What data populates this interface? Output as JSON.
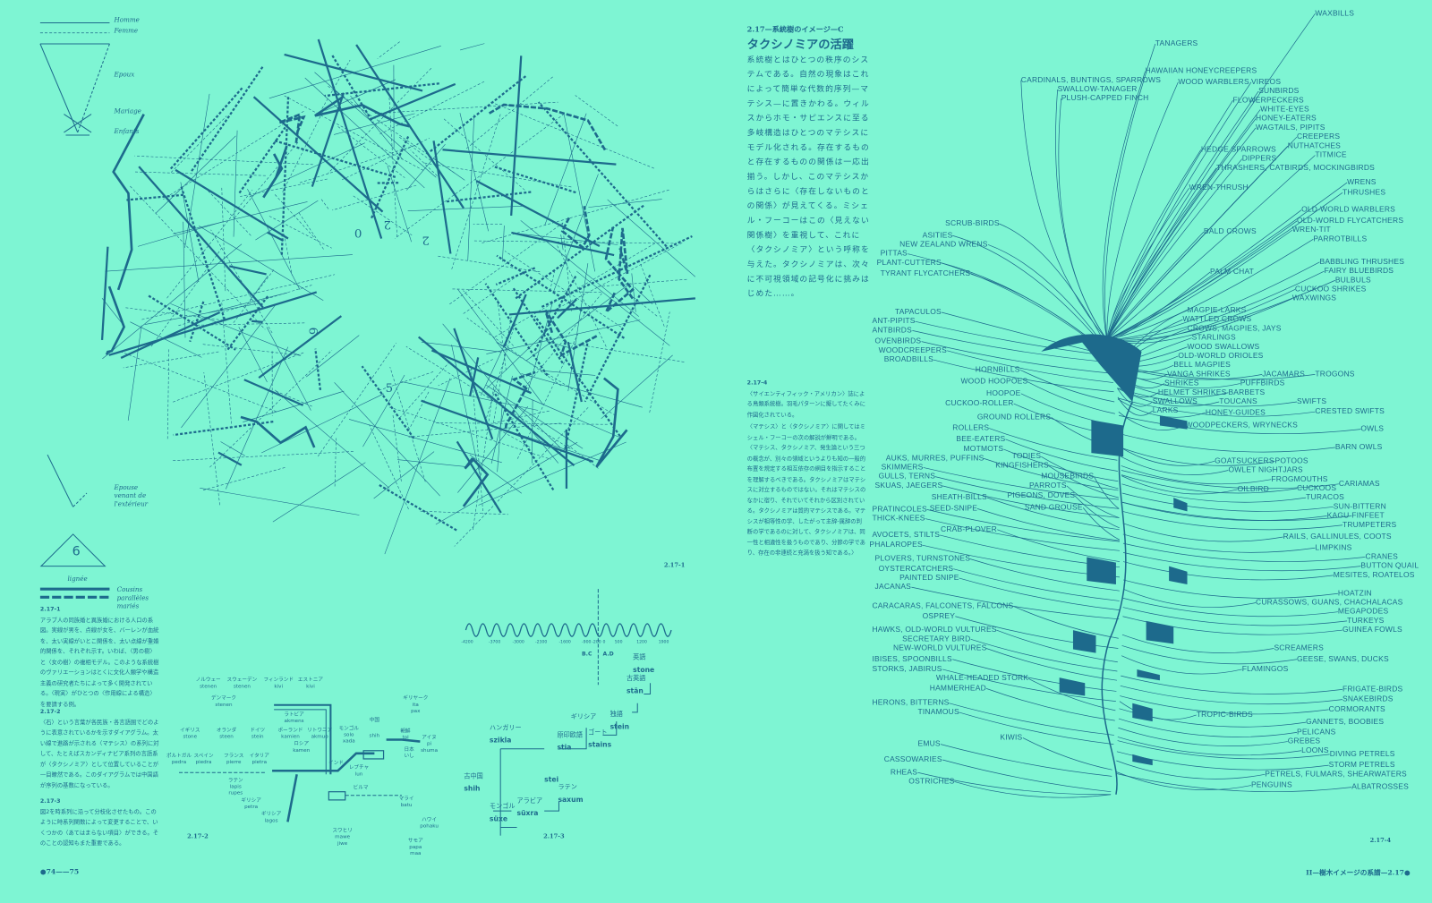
{
  "colors": {
    "background": "#7ef5d3",
    "ink": "#1d6a8c"
  },
  "legend": {
    "homme": "Homme",
    "femme": "Femme",
    "epoux": "Epoux",
    "mariage": "Mariage",
    "enfants": "Enfants",
    "epouse": "Epouse venant de l'extérieur",
    "lignee_number": "6",
    "lignee": "lignée",
    "cousins": "Cousins parallèles mariés"
  },
  "network": {
    "numbers": [
      "0",
      "2",
      "2",
      "9",
      "5",
      "6"
    ],
    "figure_label": "2.17-1"
  },
  "captions": [
    {
      "id": "2.17-1",
      "text": "アラブ人の同族婚と異族婚における人口の系図。実線が男を、点線が女を、バーレンが血統を、太い実線がいとこ関係を、太い点線が重婚的関係を、それぞれ示す。いわば、〈男の樹〉と〈女の樹〉の複相モデル。このような系統樹のヴァリエーションはとくに文化人類学や構造主義の研究者たちによって多く開発されている。〈現実〉がひとつの〈作用線による構造〉を要請する例。"
    },
    {
      "id": "2.17-2",
      "text": "〈石〉という言葉が各民族・各言語圏でどのように表意されているかを示すダイアグラム。太い線で進路が示される〈マテシス〉の系列に対して、たとえばスカンディナビア系列の言語系が〈タクシノミア〉として位置していることが一目瞭然である。このダイアグラムでは中国語が序列の基数になっている。"
    },
    {
      "id": "2.17-3",
      "text": "図2を時系列に沿って分枝化させたもの。このように時系列関数によって変更することで、いくつかの〈あてはまらない項目〉ができる。そのことの認知もまた重要である。"
    }
  ],
  "article": {
    "kicker": "2.17—系統樹のイメージ—C",
    "title": "タクシノミアの活躍",
    "body": "系統樹とはひとつの秩序のシステムである。自然の現象はこれによって簡単な代数的序列—マテシス—に置きかわる。ウィルスからホモ・サピエンスに至る多岐構造はひとつのマテシスにモデル化される。存在するものと存在するものの関係は一応出揃う。しかし、このマテシスからはさらに〈存在しないものとの関係〉が見えてくる。ミシェル・フーコーはこの〈見えない関係樹〉を重視して、これに〈タクシノミア〉という呼称を与えた。タクシノミアは、次々に不可視領域の記号化に挑みはじめた……。",
    "caption4_id": "2.17-4",
    "caption4": "〈サイエンティフィック・アメリカン〉誌による鳥類系統樹。羽毛パターンに擬してたくみに作図化されている。",
    "quote": "〈マテシス〉と〈タクシノミア〉に関してはミシェル・フーコーの次の解説が鮮明である。〈マテシス、タクシノミア、発生論という三つの概念が、別々の領域というよりも知の一般的布置を規定する相互依存の網目を指示することを理解するべきである。タクシノミアはマテシスに対立するものではない。それはマテシスのなかに宿り、それでいてそれから区別されている。タクシノミアは質的マテシスである。マテシスが相等性の学、したがって主辞-属辞の判断の学であるのに対して、タクシノミアは、同一性と相違性を扱うものであり、分節の学であり、存在の非連続と充満を扱う知である。〉"
  },
  "lang_diagram": {
    "figure_label": "2.17-2",
    "nodes": [
      "ノルウェー\nstenen",
      "スウェーデン\nstenen",
      "フィンランド\nkivi",
      "エストニア\nkivi",
      "デンマーク\nstenen",
      "ラトビア\nakmens",
      "イギリス\nstone",
      "オランダ\nsteen",
      "ドイツ\nstein",
      "ポーランド\nkamien",
      "リトワニア\nakmuo",
      "ロシア\nkamen",
      "ポルトガル\npedra",
      "スペイン\npiedra",
      "フランス\npierre",
      "イタリア\npietra",
      "ラテン\nlapis\nrupes",
      "ギリシア\npetra",
      "ギリシア\nlagos",
      "モンゴル\nsolo\nxada",
      "中国",
      "shih",
      "朝鮮\ntol",
      "アイヌ\npi\nshuma",
      "日本\nいし",
      "レプチャ\nlun",
      "インド",
      "ビルマ",
      "マライ\nbatu",
      "ハワイ\npohaku",
      "ギリヤーク\nita\npax",
      "スワヒリ\nmawe\njiwe",
      "サモア\npapa\nmaa"
    ]
  },
  "timeline": {
    "figure_label": "2.17-3",
    "ticks": [
      "-4200",
      "-3700",
      "-3000",
      "-2300",
      "-1600",
      "-900",
      "-200",
      "0",
      "500",
      "1200",
      "1900"
    ],
    "bc": "B.C",
    "ad": "A.D",
    "nodes": [
      {
        "lang": "ハンガリー",
        "word": "szikla"
      },
      {
        "lang": "古中国",
        "word": "shih"
      },
      {
        "lang": "モンゴル",
        "word": "süxe"
      },
      {
        "lang": "アラビア",
        "word": "süxra"
      },
      {
        "lang": "ラテン",
        "word": "saxum"
      },
      {
        "lang": "",
        "word": "stei"
      },
      {
        "lang": "原印欧語",
        "word": "stia"
      },
      {
        "lang": "ギリシア",
        "word": ""
      },
      {
        "lang": "ゴート",
        "word": "stains"
      },
      {
        "lang": "独語",
        "word": "stein"
      },
      {
        "lang": "古英語",
        "word": "stān"
      },
      {
        "lang": "英語",
        "word": "stone"
      }
    ]
  },
  "birds": {
    "figure_label": "2.17-4",
    "labels": [
      "WAXBILLS",
      "CARDINALS, BUNTINGS, SPARROWS",
      "TANAGERS",
      "SWALLOW-TANAGER",
      "PLUSH-CAPPED FINCH",
      "HAWAIIAN HONEYCREEPERS",
      "WOOD WARBLERS",
      "VIREOS",
      "SUNBIRDS",
      "FLOWERPECKERS",
      "WHITE-EYES",
      "HONEY-EATERS",
      "WAGTAILS, PIPITS",
      "CREEPERS",
      "NUTHATCHES",
      "TITMICE",
      "HEDGE SPARROWS",
      "DIPPERS",
      "THRASHERS, CATBIRDS, MOCKINGBIRDS",
      "WRENS",
      "THRUSHES",
      "WREN-THRUSH",
      "OLD-WORLD WARBLERS",
      "OLD-WORLD FLYCATCHERS",
      "WREN-TIT",
      "PARROTBILLS",
      "BALD CROWS",
      "BABBLING THRUSHES",
      "FAIRY BLUEBIRDS",
      "BULBULS",
      "CUCKOO SHRIKES",
      "PALM CHAT",
      "WAXWINGS",
      "MAGPIE-LARKS",
      "WATTLED CROWS",
      "CROWS, MAGPIES, JAYS",
      "STARLINGS",
      "WOOD SWALLOWS",
      "OLD-WORLD ORIOLES",
      "BELL MAGPIES",
      "VANGA SHRIKES",
      "SHRIKES",
      "HELMET SHRIKES",
      "SWALLOWS",
      "LARKS",
      "WOODPECKERS, WRYNECKS",
      "HONEY-GUIDES",
      "TOUCANS",
      "BARBETS",
      "PUFFBIRDS",
      "JACAMARS",
      "TROGONS",
      "SWIFTS",
      "CRESTED SWIFTS",
      "OWLS",
      "BARN OWLS",
      "GOATSUCKERS",
      "OWLET NIGHTJARS",
      "POTOOS",
      "FROGMOUTHS",
      "OILBIRD",
      "CUCKOOS",
      "TURACOS",
      "CARIAMAS",
      "SUN-BITTERN",
      "KAGU",
      "FINFEET",
      "TRUMPETERS",
      "RAILS, GALLINULES, COOTS",
      "LIMPKINS",
      "CRANES",
      "BUTTON QUAIL",
      "MESITES, ROATELOS",
      "HOATZIN",
      "CURASSOWS, GUANS, CHACHALACAS",
      "MEGAPODES",
      "TURKEYS",
      "GUINEA FOWLS",
      "SCREAMERS",
      "GEESE, SWANS, DUCKS",
      "FLAMINGOS",
      "FRIGATE-BIRDS",
      "SNAKEBIRDS",
      "CORMORANTS",
      "GANNETS, BOOBIES",
      "PELICANS",
      "TROPIC-BIRDS",
      "GREBES",
      "LOONS",
      "DIVING PETRELS",
      "STORM PETRELS",
      "PETRELS, FULMARS, SHEARWATERS",
      "ALBATROSSES",
      "PENGUINS",
      "SCRUB-BIRDS",
      "ASITIES",
      "NEW ZEALAND WRENS",
      "PITTAS",
      "PLANT-CUTTERS",
      "TYRANT FLYCATCHERS",
      "TAPACULOS",
      "ANT-PIPITS",
      "ANTBIRDS",
      "OVENBIRDS",
      "WOODCREEPERS",
      "BROADBILLS",
      "HORNBILLS",
      "WOOD HOOPOES",
      "HOOPOE",
      "CUCKOO-ROLLER",
      "GROUND ROLLERS",
      "ROLLERS",
      "BEE-EATERS",
      "MOTMOTS",
      "TODIES",
      "KINGFISHERS",
      "AUKS, MURRES, PUFFINS",
      "SKIMMERS",
      "GULLS, TERNS",
      "SKUAS, JAEGERS",
      "MOUSEBIRDS",
      "PARROTS",
      "PIGEONS, DOVES",
      "SAND GROUSE",
      "SHEATH-BILLS",
      "SEED-SNIPE",
      "PRATINCOLES",
      "THICK-KNEES",
      "CRAB-PLOVER",
      "AVOCETS, STILTS",
      "PHALAROPES",
      "PLOVERS, TURNSTONES",
      "OYSTERCATCHERS",
      "PAINTED SNIPE",
      "JACANAS",
      "CARACARAS, FALCONETS, FALCONS",
      "OSPREY",
      "HAWKS, OLD-WORLD VULTURES",
      "SECRETARY BIRD",
      "NEW-WORLD VULTURES",
      "IBISES, SPOONBILLS",
      "STORKS, JABIRUS",
      "WHALE-HEADED STORK",
      "HAMMERHEAD",
      "HERONS, BITTERNS",
      "TINAMOUS",
      "KIWIS",
      "EMUS",
      "CASSOWARIES",
      "RHEAS",
      "OSTRICHES"
    ]
  },
  "footer": {
    "left": "●74——75",
    "right": "II—樹木イメージの系譜—2.17●"
  }
}
